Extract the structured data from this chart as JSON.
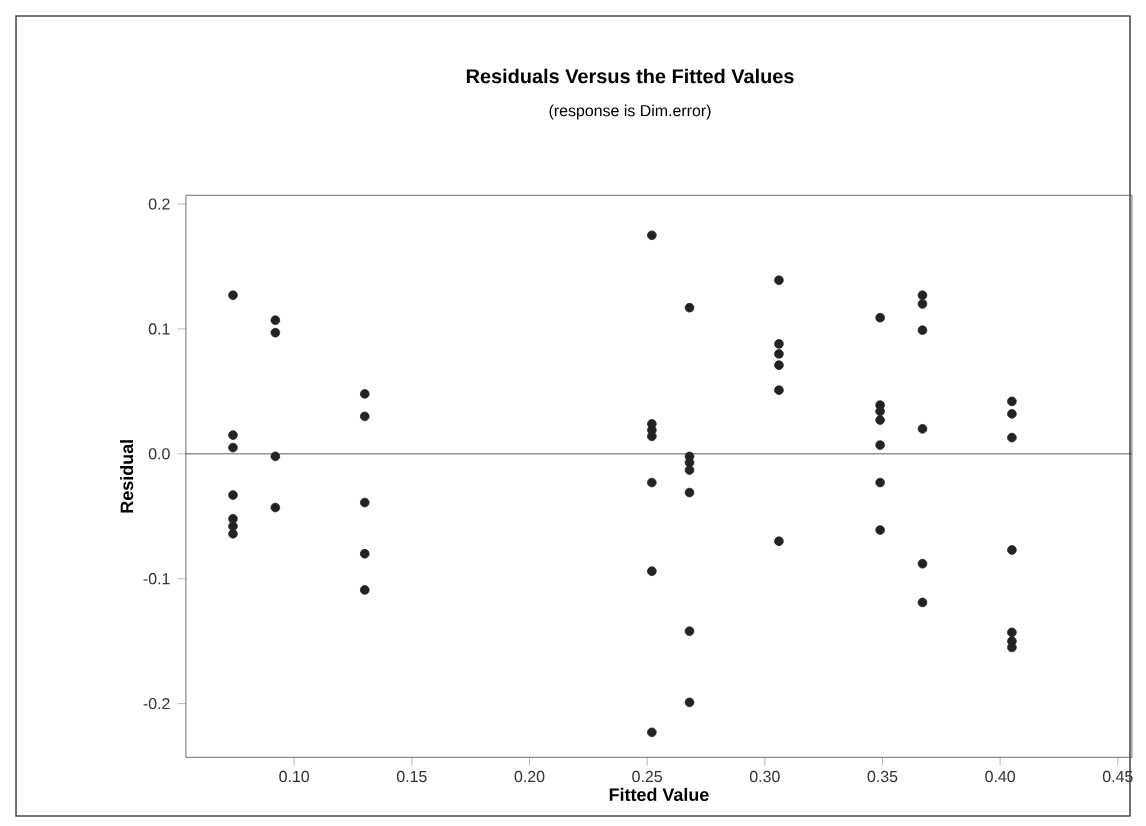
{
  "chart_data": {
    "type": "scatter",
    "title": "Residuals Versus the Fitted Values",
    "subtitle": "(response is Dim.error)",
    "xlabel": "Fitted Value",
    "ylabel": "Residual",
    "x": [
      0.074,
      0.074,
      0.074,
      0.074,
      0.074,
      0.074,
      0.074,
      0.092,
      0.092,
      0.092,
      0.092,
      0.13,
      0.13,
      0.13,
      0.13,
      0.13,
      0.252,
      0.252,
      0.252,
      0.252,
      0.252,
      0.252,
      0.252,
      0.268,
      0.268,
      0.268,
      0.268,
      0.268,
      0.268,
      0.268,
      0.306,
      0.306,
      0.306,
      0.306,
      0.306,
      0.306,
      0.349,
      0.349,
      0.349,
      0.349,
      0.349,
      0.349,
      0.349,
      0.367,
      0.367,
      0.367,
      0.367,
      0.367,
      0.367,
      0.405,
      0.405,
      0.405,
      0.405,
      0.405,
      0.405,
      0.405
    ],
    "series": [
      {
        "color": "#232323",
        "values": [
          0.127,
          0.015,
          0.005,
          -0.033,
          -0.052,
          -0.058,
          -0.064,
          0.107,
          0.097,
          -0.002,
          -0.043,
          0.048,
          0.03,
          -0.039,
          -0.08,
          -0.109,
          0.175,
          0.024,
          0.019,
          0.014,
          -0.023,
          -0.094,
          -0.223,
          0.117,
          -0.002,
          -0.007,
          -0.013,
          -0.031,
          -0.142,
          -0.199,
          0.139,
          0.088,
          0.08,
          0.071,
          0.051,
          -0.07,
          0.109,
          0.039,
          0.034,
          0.027,
          0.007,
          -0.023,
          -0.061,
          0.127,
          0.12,
          0.099,
          0.02,
          -0.088,
          -0.119,
          0.042,
          0.032,
          0.013,
          -0.077,
          -0.143,
          -0.15,
          -0.155
        ]
      }
    ],
    "xlim": [
      0.054,
      0.456
    ],
    "ylim": [
      -0.243,
      0.207
    ],
    "xticks": [
      {
        "value": 0.1,
        "label": "0.10"
      },
      {
        "value": 0.15,
        "label": "0.15"
      },
      {
        "value": 0.2,
        "label": "0.20"
      },
      {
        "value": 0.25,
        "label": "0.25"
      },
      {
        "value": 0.3,
        "label": "0.30"
      },
      {
        "value": 0.35,
        "label": "0.35"
      },
      {
        "value": 0.4,
        "label": "0.40"
      },
      {
        "value": 0.45,
        "label": "0.45"
      }
    ],
    "yticks": [
      {
        "value": -0.2,
        "label": "-0.2"
      },
      {
        "value": -0.1,
        "label": "-0.1"
      },
      {
        "value": 0,
        "label": "0.0"
      },
      {
        "value": 0.1,
        "label": "0.1"
      },
      {
        "value": 0.2,
        "label": "0.2"
      }
    ],
    "ref_lines": [
      {
        "axis": "y",
        "value": 0,
        "color": "#333333"
      }
    ],
    "grid": false
  }
}
